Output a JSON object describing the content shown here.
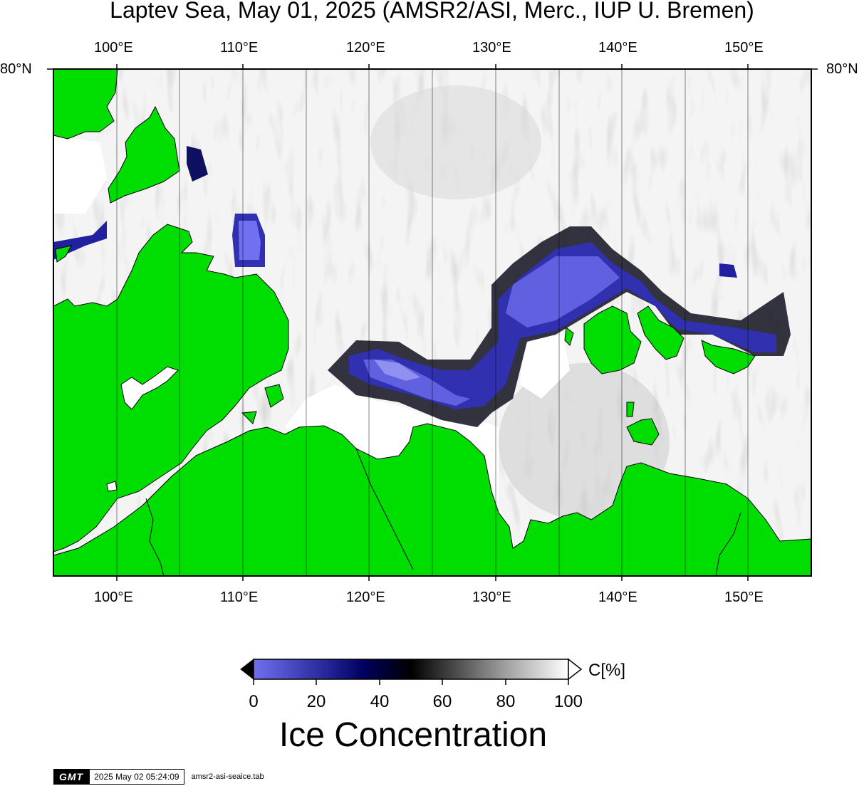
{
  "title": "Laptev Sea, May 01, 2025 (AMSR2/ASI, Merc., IUP U. Bremen)",
  "map": {
    "lon_ticks": [
      "100°E",
      "110°E",
      "120°E",
      "130°E",
      "140°E",
      "150°E"
    ],
    "lat_label_left": "80°N",
    "lat_label_right": "80°N",
    "land_color": "#00dd00",
    "icons": [
      "land-mass",
      "open-water-polynya",
      "ice-field"
    ]
  },
  "colorbar": {
    "ticks": [
      "0",
      "20",
      "40",
      "60",
      "80",
      "100"
    ],
    "unit": "C[%]",
    "title": "Ice Concentration",
    "colors": [
      "#7070f0",
      "#000080",
      "#000000",
      "#808080",
      "#ffffff"
    ]
  },
  "footer": {
    "logo": "GMT",
    "timestamp": "2025 May 02 05:24:09",
    "source": "amsr2-asi-seaice.tab"
  }
}
